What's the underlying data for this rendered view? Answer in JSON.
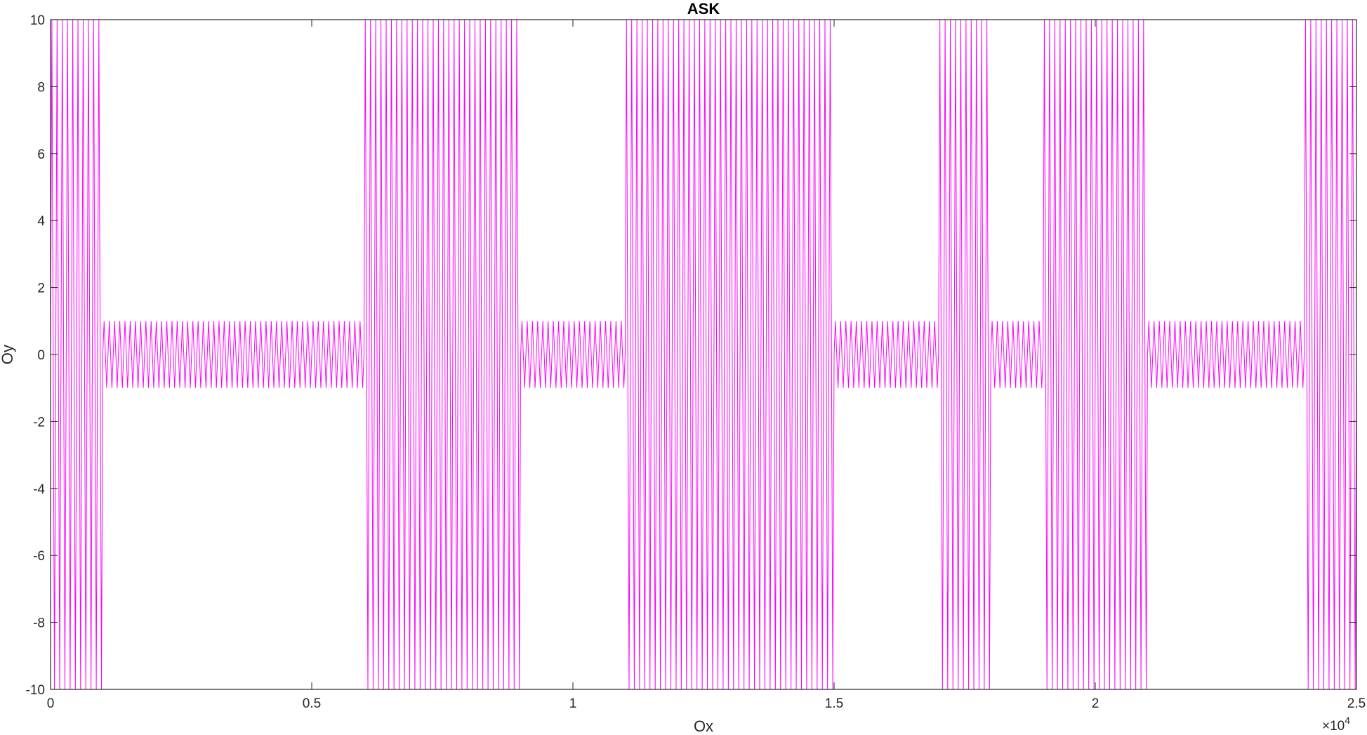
{
  "chart_data": {
    "type": "line",
    "title": "ASK",
    "xlabel": "Ox",
    "ylabel": "Oy",
    "x_exponent_label": "×10",
    "x_exponent_power": "4",
    "xlim": [
      0,
      25000
    ],
    "ylim": [
      -10,
      10
    ],
    "grid": false,
    "x_ticks": [
      0,
      5000,
      10000,
      15000,
      20000,
      25000
    ],
    "x_tick_labels": [
      "0",
      "0.5",
      "1",
      "1.5",
      "2",
      "2.5"
    ],
    "y_ticks": [
      -10,
      -8,
      -6,
      -4,
      -2,
      0,
      2,
      4,
      6,
      8,
      10
    ],
    "y_tick_labels": [
      "-10",
      "-8",
      "-6",
      "-4",
      "-2",
      "0",
      "2",
      "4",
      "6",
      "8",
      "10"
    ],
    "series": [
      {
        "color": "#FF00FF",
        "carrier_period": 100,
        "bits": [
          1,
          0,
          0,
          0,
          0,
          0,
          1,
          1,
          1,
          0,
          0,
          1,
          1,
          1,
          1,
          0,
          0,
          1,
          0,
          1,
          1,
          0,
          0,
          0,
          1
        ],
        "bit_duration": 1000,
        "amplitude_high": 10,
        "amplitude_low": 1
      }
    ]
  }
}
